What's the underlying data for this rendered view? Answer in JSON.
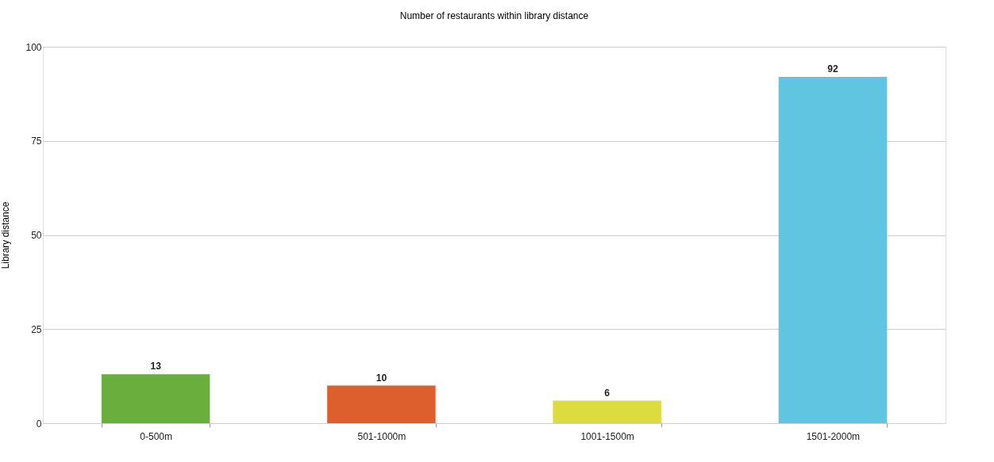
{
  "chart_data": {
    "type": "bar",
    "title": "Number of restaurants within library distance",
    "ylabel": "Library distance",
    "categories": [
      "0-500m",
      "501-1000m",
      "1001-1500m",
      "1501-2000m"
    ],
    "values": [
      13,
      10,
      6,
      92
    ],
    "colors": [
      "#6aae3e",
      "#dd5f2e",
      "#dcdc40",
      "#5fc5e0"
    ],
    "ylim": [
      0,
      100
    ],
    "yticks": [
      0,
      25,
      50,
      75,
      100
    ],
    "grid": "y",
    "data_labels": true
  }
}
